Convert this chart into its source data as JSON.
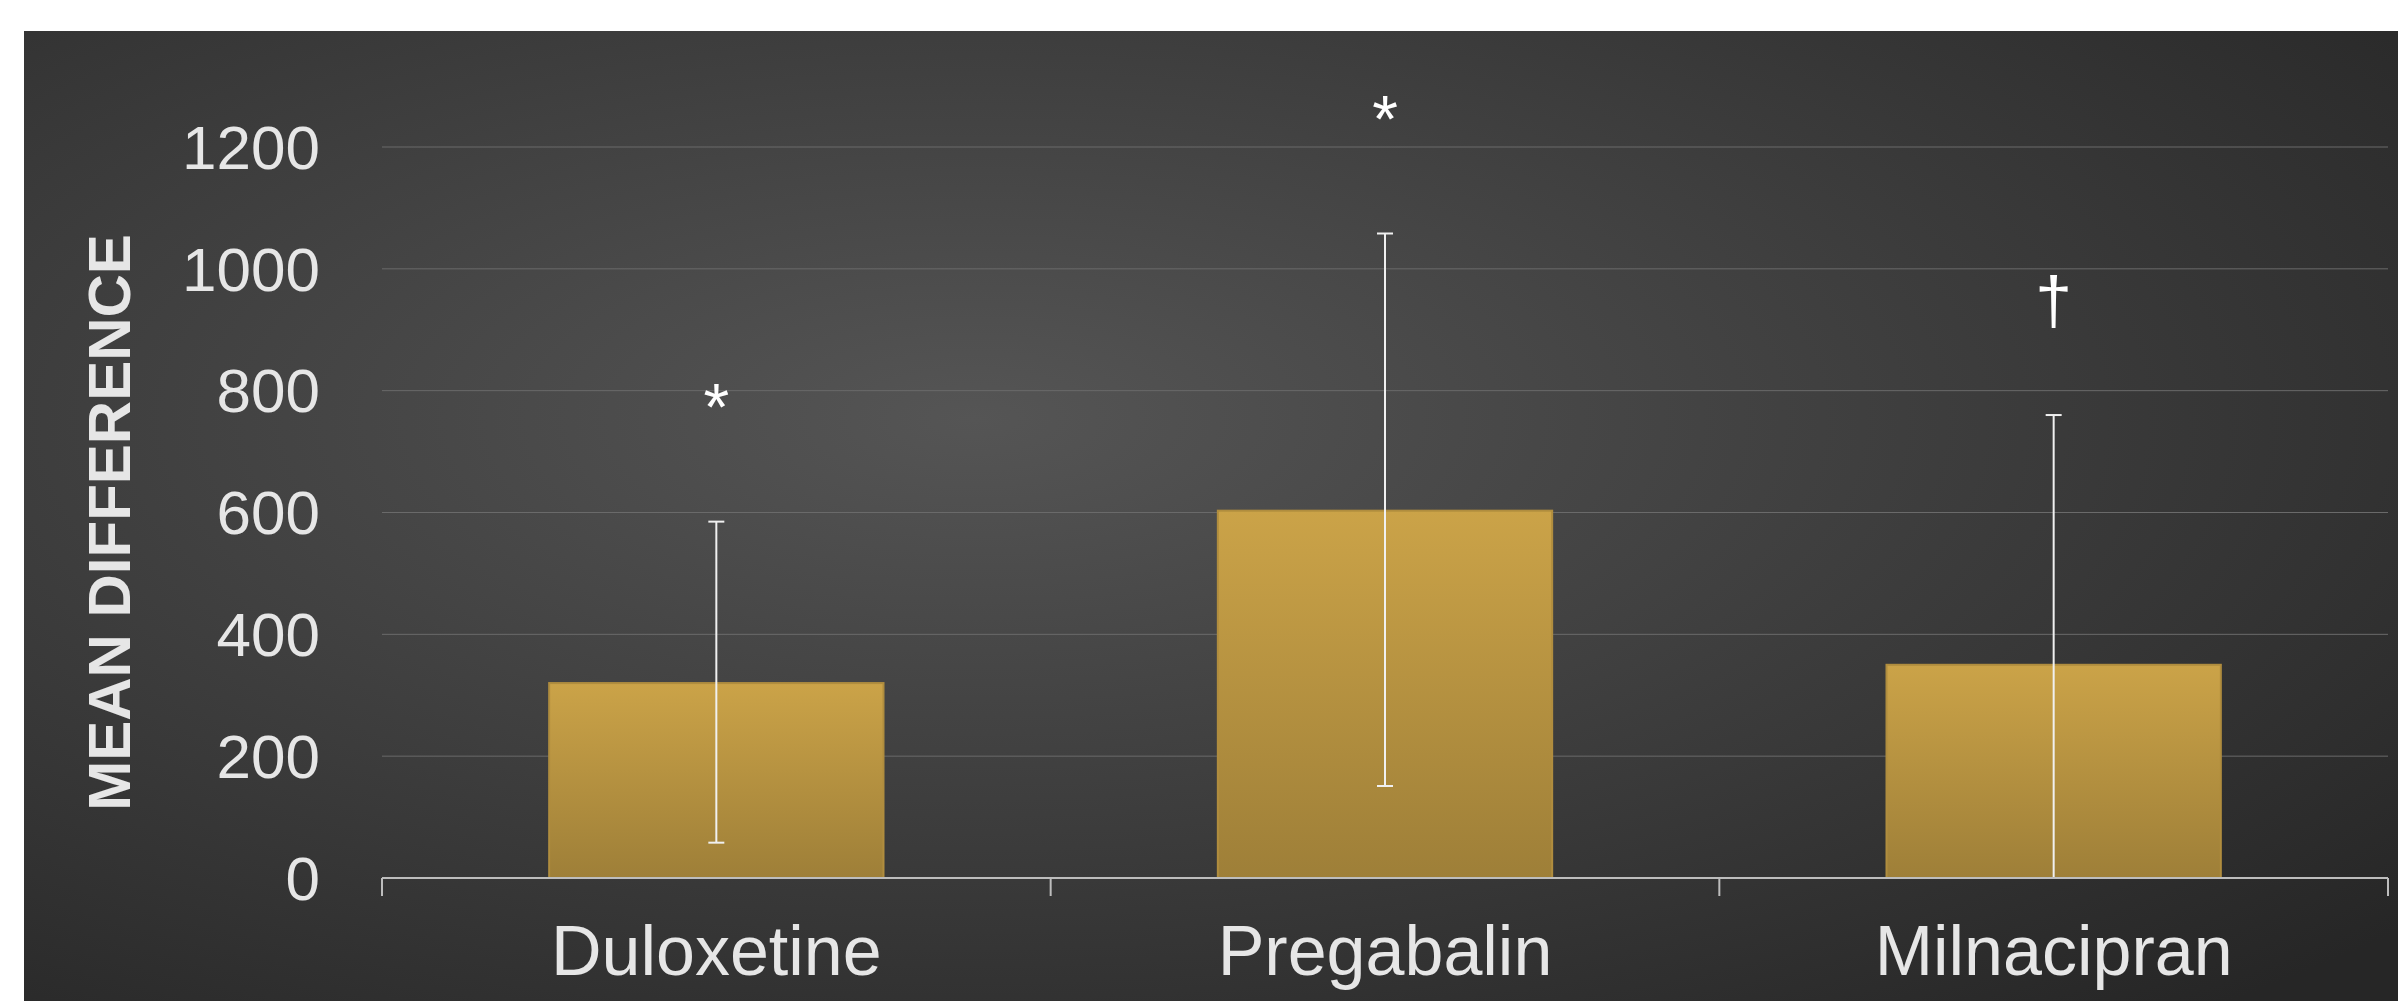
{
  "chart_data": {
    "type": "bar",
    "ylabel": "MEAN DIFFERENCE",
    "categories": [
      "Duloxetine",
      "Pregabalin",
      "Milnacipran"
    ],
    "values": [
      320,
      603,
      350
    ],
    "errors": [
      [
        58,
        585
      ],
      [
        151,
        1058
      ],
      [
        0,
        760
      ]
    ],
    "color": "#b08d3e",
    "ylim": [
      0,
      1200
    ],
    "yticks": [
      0,
      200,
      400,
      600,
      800,
      1000,
      1200
    ],
    "grid": "y",
    "annotations": [
      "*",
      "*",
      "†"
    ]
  }
}
